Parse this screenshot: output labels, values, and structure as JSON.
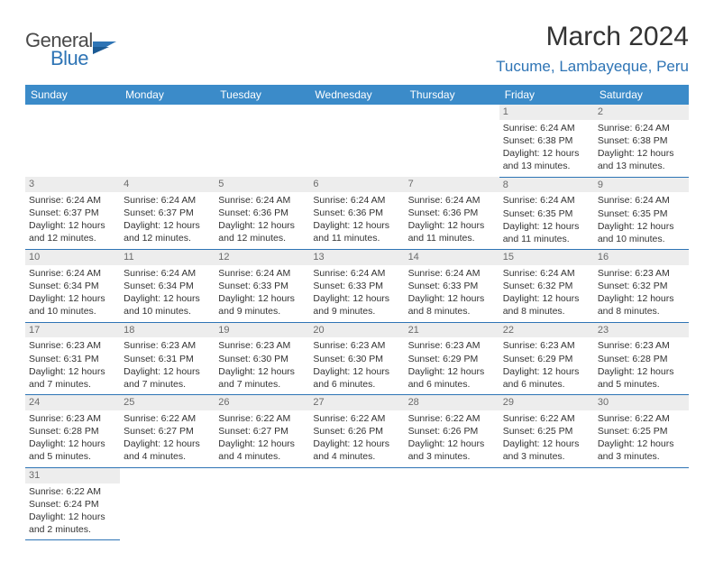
{
  "logo": {
    "textA": "General",
    "textB": "Blue"
  },
  "title": "March 2024",
  "location": "Tucume, Lambayeque, Peru",
  "colors": {
    "headerBg": "#3b8bc9",
    "headerText": "#ffffff",
    "accent": "#2e74b5",
    "dayNumBg": "#ededed",
    "bodyText": "#333333"
  },
  "dayHeaders": [
    "Sunday",
    "Monday",
    "Tuesday",
    "Wednesday",
    "Thursday",
    "Friday",
    "Saturday"
  ],
  "weeks": [
    [
      null,
      null,
      null,
      null,
      null,
      {
        "n": "1",
        "sr": "6:24 AM",
        "ss": "6:38 PM",
        "dl": "12 hours and 13 minutes."
      },
      {
        "n": "2",
        "sr": "6:24 AM",
        "ss": "6:38 PM",
        "dl": "12 hours and 13 minutes."
      }
    ],
    [
      {
        "n": "3",
        "sr": "6:24 AM",
        "ss": "6:37 PM",
        "dl": "12 hours and 12 minutes."
      },
      {
        "n": "4",
        "sr": "6:24 AM",
        "ss": "6:37 PM",
        "dl": "12 hours and 12 minutes."
      },
      {
        "n": "5",
        "sr": "6:24 AM",
        "ss": "6:36 PM",
        "dl": "12 hours and 12 minutes."
      },
      {
        "n": "6",
        "sr": "6:24 AM",
        "ss": "6:36 PM",
        "dl": "12 hours and 11 minutes."
      },
      {
        "n": "7",
        "sr": "6:24 AM",
        "ss": "6:36 PM",
        "dl": "12 hours and 11 minutes."
      },
      {
        "n": "8",
        "sr": "6:24 AM",
        "ss": "6:35 PM",
        "dl": "12 hours and 11 minutes."
      },
      {
        "n": "9",
        "sr": "6:24 AM",
        "ss": "6:35 PM",
        "dl": "12 hours and 10 minutes."
      }
    ],
    [
      {
        "n": "10",
        "sr": "6:24 AM",
        "ss": "6:34 PM",
        "dl": "12 hours and 10 minutes."
      },
      {
        "n": "11",
        "sr": "6:24 AM",
        "ss": "6:34 PM",
        "dl": "12 hours and 10 minutes."
      },
      {
        "n": "12",
        "sr": "6:24 AM",
        "ss": "6:33 PM",
        "dl": "12 hours and 9 minutes."
      },
      {
        "n": "13",
        "sr": "6:24 AM",
        "ss": "6:33 PM",
        "dl": "12 hours and 9 minutes."
      },
      {
        "n": "14",
        "sr": "6:24 AM",
        "ss": "6:33 PM",
        "dl": "12 hours and 8 minutes."
      },
      {
        "n": "15",
        "sr": "6:24 AM",
        "ss": "6:32 PM",
        "dl": "12 hours and 8 minutes."
      },
      {
        "n": "16",
        "sr": "6:23 AM",
        "ss": "6:32 PM",
        "dl": "12 hours and 8 minutes."
      }
    ],
    [
      {
        "n": "17",
        "sr": "6:23 AM",
        "ss": "6:31 PM",
        "dl": "12 hours and 7 minutes."
      },
      {
        "n": "18",
        "sr": "6:23 AM",
        "ss": "6:31 PM",
        "dl": "12 hours and 7 minutes."
      },
      {
        "n": "19",
        "sr": "6:23 AM",
        "ss": "6:30 PM",
        "dl": "12 hours and 7 minutes."
      },
      {
        "n": "20",
        "sr": "6:23 AM",
        "ss": "6:30 PM",
        "dl": "12 hours and 6 minutes."
      },
      {
        "n": "21",
        "sr": "6:23 AM",
        "ss": "6:29 PM",
        "dl": "12 hours and 6 minutes."
      },
      {
        "n": "22",
        "sr": "6:23 AM",
        "ss": "6:29 PM",
        "dl": "12 hours and 6 minutes."
      },
      {
        "n": "23",
        "sr": "6:23 AM",
        "ss": "6:28 PM",
        "dl": "12 hours and 5 minutes."
      }
    ],
    [
      {
        "n": "24",
        "sr": "6:23 AM",
        "ss": "6:28 PM",
        "dl": "12 hours and 5 minutes."
      },
      {
        "n": "25",
        "sr": "6:22 AM",
        "ss": "6:27 PM",
        "dl": "12 hours and 4 minutes."
      },
      {
        "n": "26",
        "sr": "6:22 AM",
        "ss": "6:27 PM",
        "dl": "12 hours and 4 minutes."
      },
      {
        "n": "27",
        "sr": "6:22 AM",
        "ss": "6:26 PM",
        "dl": "12 hours and 4 minutes."
      },
      {
        "n": "28",
        "sr": "6:22 AM",
        "ss": "6:26 PM",
        "dl": "12 hours and 3 minutes."
      },
      {
        "n": "29",
        "sr": "6:22 AM",
        "ss": "6:25 PM",
        "dl": "12 hours and 3 minutes."
      },
      {
        "n": "30",
        "sr": "6:22 AM",
        "ss": "6:25 PM",
        "dl": "12 hours and 3 minutes."
      }
    ],
    [
      {
        "n": "31",
        "sr": "6:22 AM",
        "ss": "6:24 PM",
        "dl": "12 hours and 2 minutes."
      },
      null,
      null,
      null,
      null,
      null,
      null
    ]
  ],
  "labels": {
    "sunrise": "Sunrise:",
    "sunset": "Sunset:",
    "daylight": "Daylight:"
  }
}
